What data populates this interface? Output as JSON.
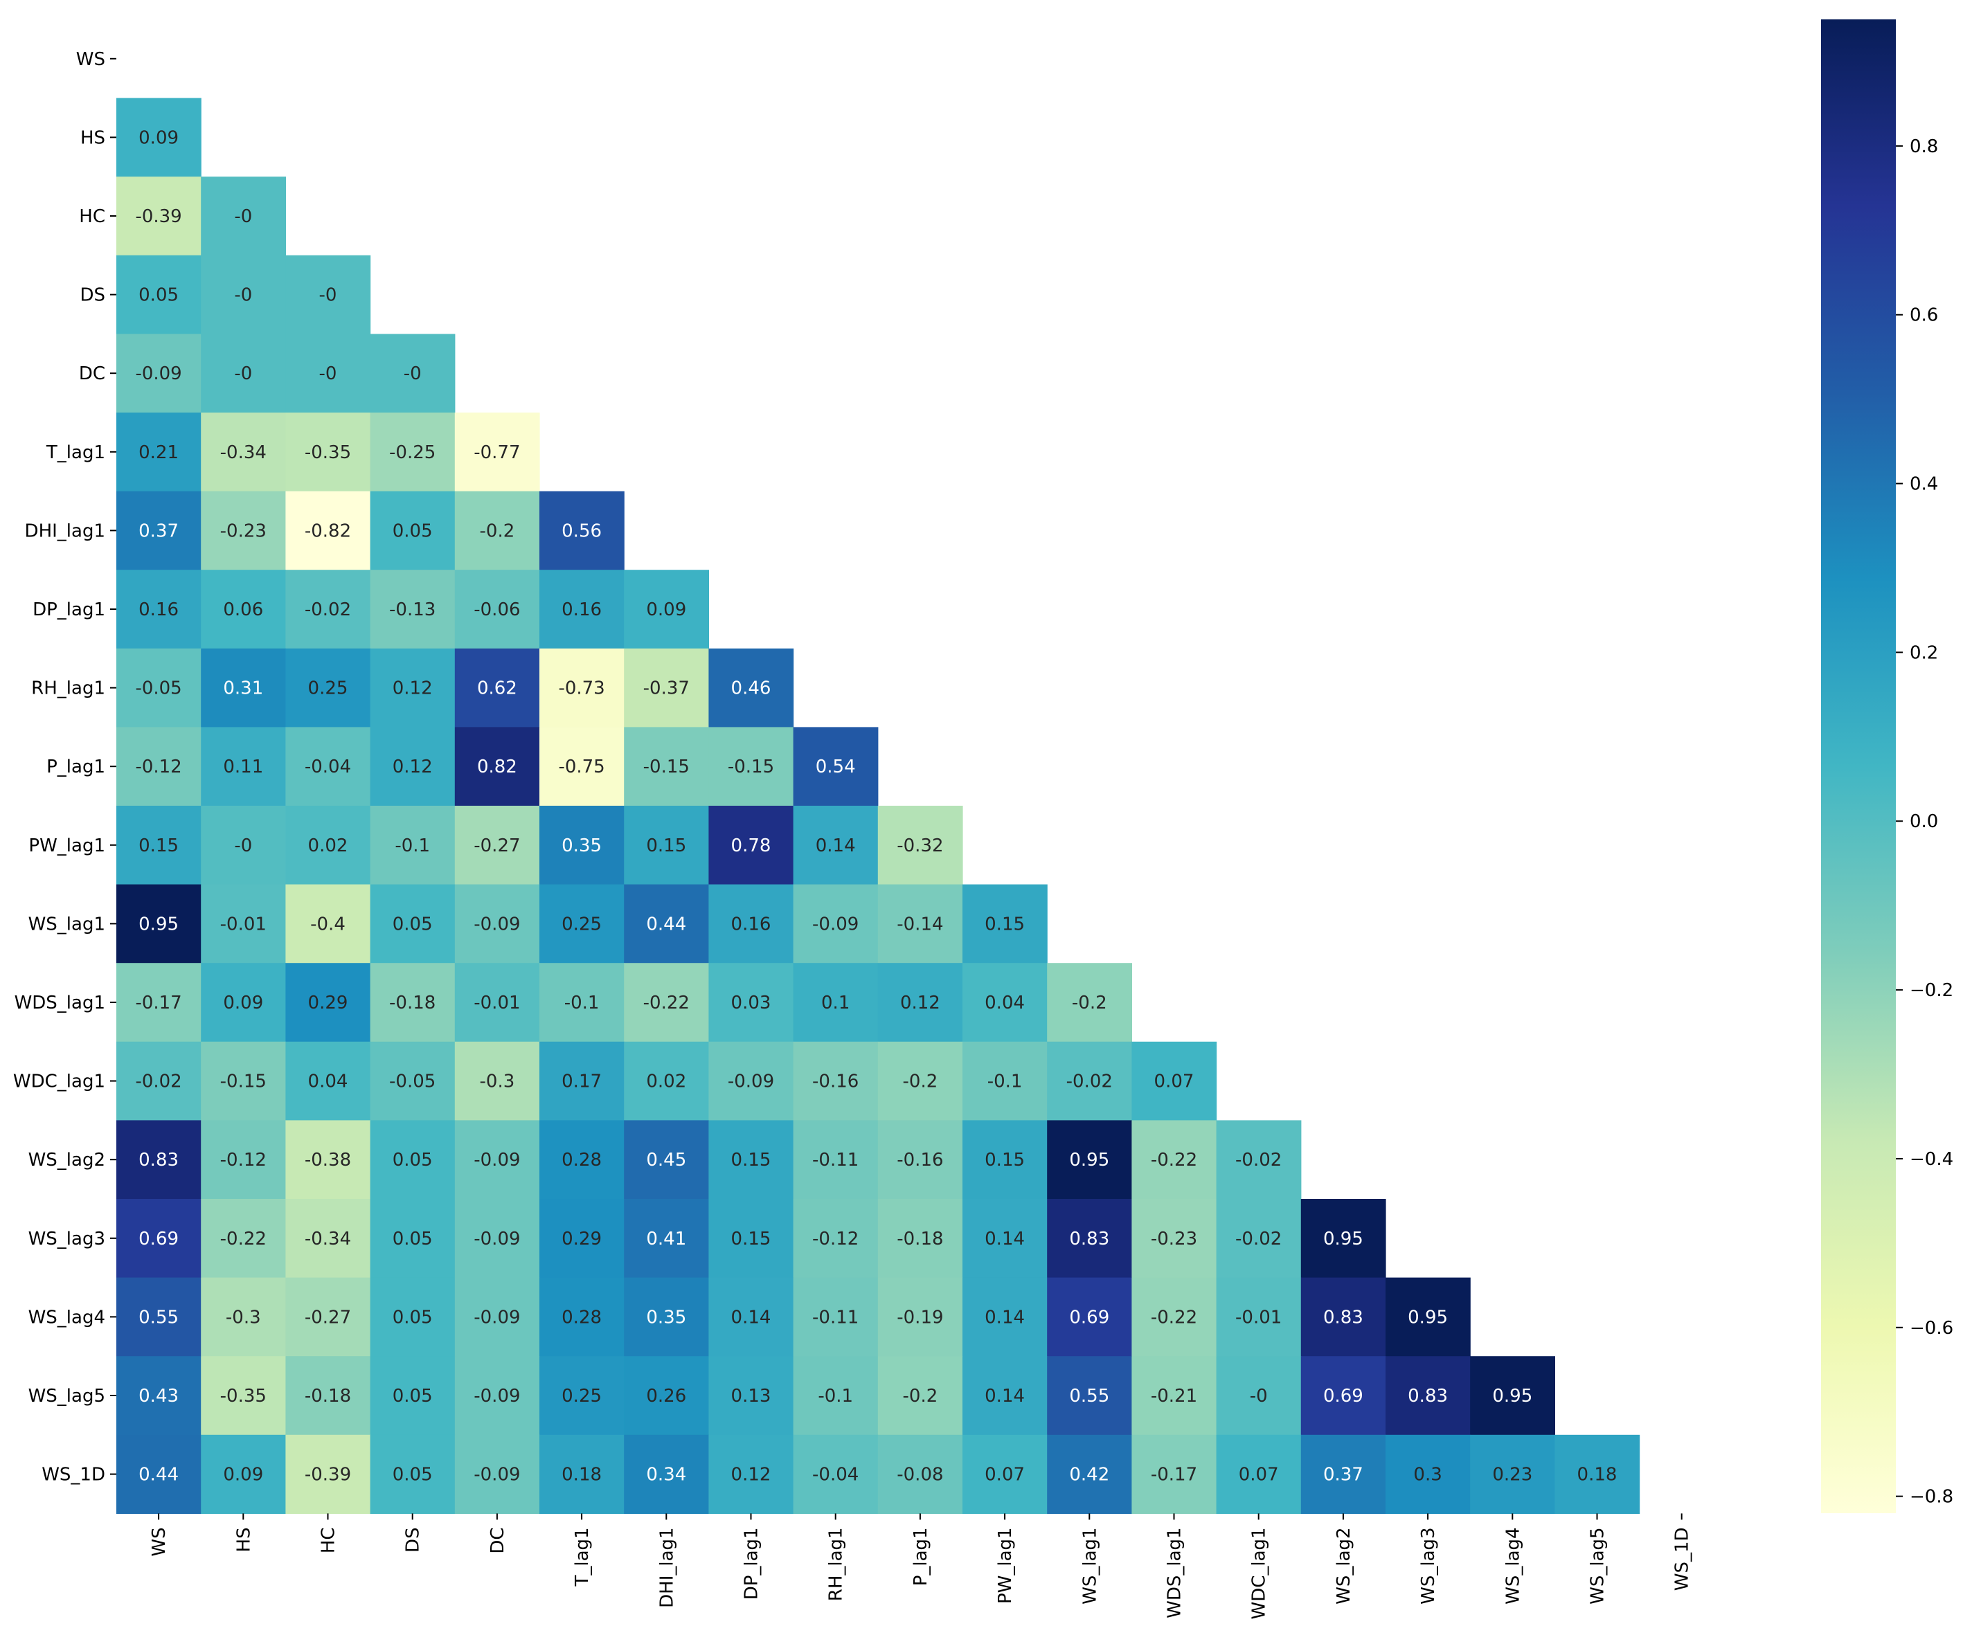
{
  "chart_data": {
    "type": "heatmap",
    "title": "",
    "xlabel": "",
    "ylabel": "",
    "labels": [
      "WS",
      "HS",
      "HC",
      "DS",
      "DC",
      "T_lag1",
      "DHI_lag1",
      "DP_lag1",
      "RH_lag1",
      "P_lag1",
      "PW_lag1",
      "WS_lag1",
      "WDS_lag1",
      "WDC_lag1",
      "WS_lag2",
      "WS_lag3",
      "WS_lag4",
      "WS_lag5",
      "WS_1D"
    ],
    "mask": "upper triangle including diagonal",
    "colormap": "YlGnBu",
    "vmin": -0.82,
    "vmax": 0.95,
    "colorbar_ticks": [
      0.8,
      0.6,
      0.4,
      0.2,
      0.0,
      -0.2,
      -0.4,
      -0.6,
      -0.8
    ],
    "colorbar_tick_labels": [
      "0.8",
      "0.6",
      "0.4",
      "0.2",
      "0.0",
      "−0.2",
      "−0.4",
      "−0.6",
      "−0.8"
    ],
    "lower_triangle": [
      [],
      [
        "0.09"
      ],
      [
        "-0.39",
        "-0"
      ],
      [
        "0.05",
        "-0",
        "-0"
      ],
      [
        "-0.09",
        "-0",
        "-0",
        "-0"
      ],
      [
        "0.21",
        "-0.34",
        "-0.35",
        "-0.25",
        "-0.77"
      ],
      [
        "0.37",
        "-0.23",
        "-0.82",
        "0.05",
        "-0.2",
        "0.56"
      ],
      [
        "0.16",
        "0.06",
        "-0.02",
        "-0.13",
        "-0.06",
        "0.16",
        "0.09"
      ],
      [
        "-0.05",
        "0.31",
        "0.25",
        "0.12",
        "0.62",
        "-0.73",
        "-0.37",
        "0.46"
      ],
      [
        "-0.12",
        "0.11",
        "-0.04",
        "0.12",
        "0.82",
        "-0.75",
        "-0.15",
        "-0.15",
        "0.54"
      ],
      [
        "0.15",
        "-0",
        "0.02",
        "-0.1",
        "-0.27",
        "0.35",
        "0.15",
        "0.78",
        "0.14",
        "-0.32"
      ],
      [
        "0.95",
        "-0.01",
        "-0.4",
        "0.05",
        "-0.09",
        "0.25",
        "0.44",
        "0.16",
        "-0.09",
        "-0.14",
        "0.15"
      ],
      [
        "-0.17",
        "0.09",
        "0.29",
        "-0.18",
        "-0.01",
        "-0.1",
        "-0.22",
        "0.03",
        "0.1",
        "0.12",
        "0.04",
        "-0.2"
      ],
      [
        "-0.02",
        "-0.15",
        "0.04",
        "-0.05",
        "-0.3",
        "0.17",
        "0.02",
        "-0.09",
        "-0.16",
        "-0.2",
        "-0.1",
        "-0.02",
        "0.07"
      ],
      [
        "0.83",
        "-0.12",
        "-0.38",
        "0.05",
        "-0.09",
        "0.28",
        "0.45",
        "0.15",
        "-0.11",
        "-0.16",
        "0.15",
        "0.95",
        "-0.22",
        "-0.02"
      ],
      [
        "0.69",
        "-0.22",
        "-0.34",
        "0.05",
        "-0.09",
        "0.29",
        "0.41",
        "0.15",
        "-0.12",
        "-0.18",
        "0.14",
        "0.83",
        "-0.23",
        "-0.02",
        "0.95"
      ],
      [
        "0.55",
        "-0.3",
        "-0.27",
        "0.05",
        "-0.09",
        "0.28",
        "0.35",
        "0.14",
        "-0.11",
        "-0.19",
        "0.14",
        "0.69",
        "-0.22",
        "-0.01",
        "0.83",
        "0.95"
      ],
      [
        "0.43",
        "-0.35",
        "-0.18",
        "0.05",
        "-0.09",
        "0.25",
        "0.26",
        "0.13",
        "-0.1",
        "-0.2",
        "0.14",
        "0.55",
        "-0.21",
        "-0",
        "0.69",
        "0.83",
        "0.95"
      ],
      [
        "0.44",
        "0.09",
        "-0.39",
        "0.05",
        "-0.09",
        "0.18",
        "0.34",
        "0.12",
        "-0.04",
        "-0.08",
        "0.07",
        "0.42",
        "-0.17",
        "0.07",
        "0.37",
        "0.3",
        "0.23",
        "0.18"
      ]
    ]
  }
}
